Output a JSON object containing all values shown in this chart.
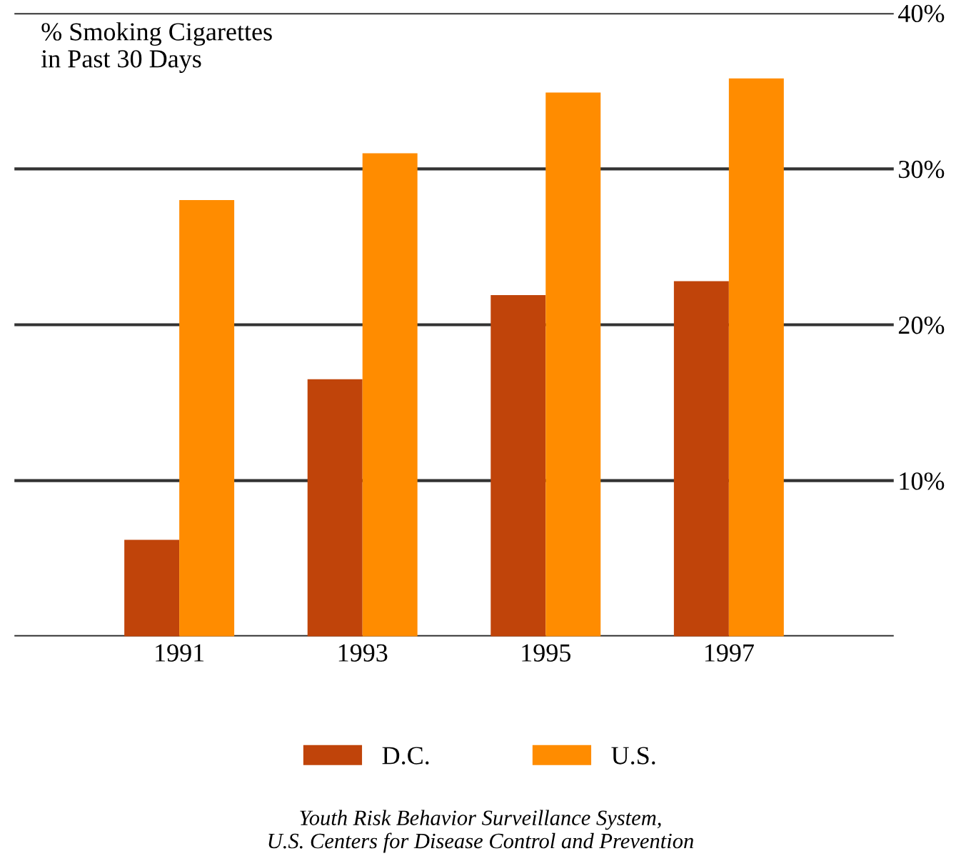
{
  "chart_data": {
    "type": "bar",
    "title": "% Smoking Cigarettes\nin Past 30 Days",
    "categories": [
      "1991",
      "1993",
      "1995",
      "1997"
    ],
    "series": [
      {
        "name": "D.C.",
        "color": "#c0440a",
        "values": [
          6.2,
          16.5,
          21.9,
          22.8
        ]
      },
      {
        "name": "U.S.",
        "color": "#ff8c00",
        "values": [
          28.0,
          31.0,
          34.9,
          35.8
        ]
      }
    ],
    "ylim": [
      0,
      40
    ],
    "yticks": [
      {
        "value": 0,
        "label": null
      },
      {
        "value": 10,
        "label": "10%"
      },
      {
        "value": 20,
        "label": "20%"
      },
      {
        "value": 30,
        "label": "30%"
      },
      {
        "value": 40,
        "label": "40%"
      }
    ],
    "grid": "y",
    "legend": "bottom",
    "annotations": [
      "Youth Risk Behavior Surveillance System,\nU.S. Centers for Disease Control and Prevention"
    ]
  }
}
